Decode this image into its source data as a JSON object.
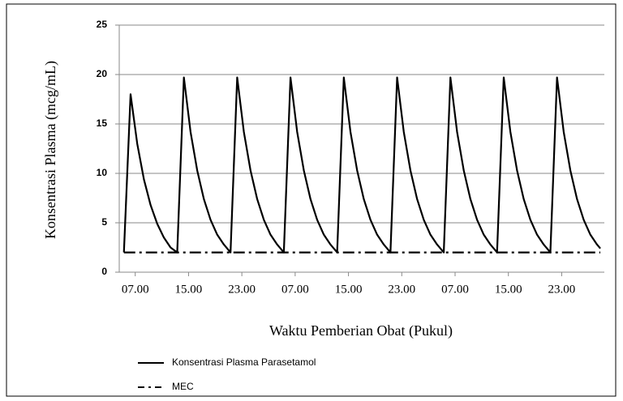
{
  "chart_data": {
    "type": "line",
    "ylabel": "Konsentrasi Plasma (mcg/mL)",
    "xlabel": "Waktu Pemberian Obat (Pukul)",
    "xlim": [
      -2.4,
      70.4
    ],
    "ylim": [
      0,
      25
    ],
    "yticks": [
      0,
      5,
      10,
      15,
      20,
      25
    ],
    "xticks": [
      {
        "value": 0,
        "label": "07.00"
      },
      {
        "value": 8,
        "label": "15.00"
      },
      {
        "value": 16,
        "label": "23.00"
      },
      {
        "value": 24,
        "label": "07.00"
      },
      {
        "value": 32,
        "label": "15.00"
      },
      {
        "value": 40,
        "label": "23.00"
      },
      {
        "value": 48,
        "label": "07.00"
      },
      {
        "value": 56,
        "label": "15.00"
      },
      {
        "value": 64,
        "label": "23.00"
      }
    ],
    "grid": true,
    "legend": "bottom-left",
    "series": [
      {
        "name": "Konsentrasi Plasma Parasetamol",
        "color": "#000000",
        "dash": "solid",
        "x": [
          -1.7,
          -0.7,
          0.3,
          1.3,
          2.3,
          3.3,
          4.3,
          5.3,
          6.3,
          7.3,
          8.3,
          9.3,
          10.3,
          11.3,
          12.3,
          13.3,
          14.3,
          15.3,
          16.3,
          17.3,
          18.3,
          19.3,
          20.3,
          21.3,
          22.3,
          23.3,
          24.3,
          25.3,
          26.3,
          27.3,
          28.3,
          29.3,
          30.3,
          31.3,
          32.3,
          33.3,
          34.3,
          35.3,
          36.3,
          37.3,
          38.3,
          39.3,
          40.3,
          41.3,
          42.3,
          43.3,
          44.3,
          45.3,
          46.3,
          47.3,
          48.3,
          49.3,
          50.3,
          51.3,
          52.3,
          53.3,
          54.3,
          55.3,
          56.3,
          57.3,
          58.3,
          59.3,
          60.3,
          61.3,
          62.3,
          63.3,
          64.3,
          65.3,
          66.3,
          67.3,
          68.3,
          69.3,
          69.8
        ],
        "values": [
          2,
          18,
          13,
          9.4,
          6.8,
          4.9,
          3.5,
          2.5,
          2,
          19.7,
          14.2,
          10.3,
          7.4,
          5.3,
          3.8,
          2.8,
          2,
          19.7,
          14.2,
          10.3,
          7.4,
          5.3,
          3.8,
          2.8,
          2,
          19.7,
          14.2,
          10.3,
          7.4,
          5.3,
          3.8,
          2.8,
          2,
          19.7,
          14.2,
          10.3,
          7.4,
          5.3,
          3.8,
          2.8,
          2,
          19.7,
          14.2,
          10.3,
          7.4,
          5.3,
          3.8,
          2.8,
          2,
          19.7,
          14.2,
          10.3,
          7.4,
          5.3,
          3.8,
          2.8,
          2,
          19.7,
          14.2,
          10.3,
          7.4,
          5.3,
          3.8,
          2.8,
          2,
          19.7,
          14.2,
          10.3,
          7.4,
          5.3,
          3.8,
          2.8,
          2.4
        ]
      },
      {
        "name": "MEC",
        "color": "#000000",
        "dash": "dashdot",
        "x": [
          -1.7,
          69.8
        ],
        "values": [
          2,
          2
        ]
      }
    ]
  }
}
